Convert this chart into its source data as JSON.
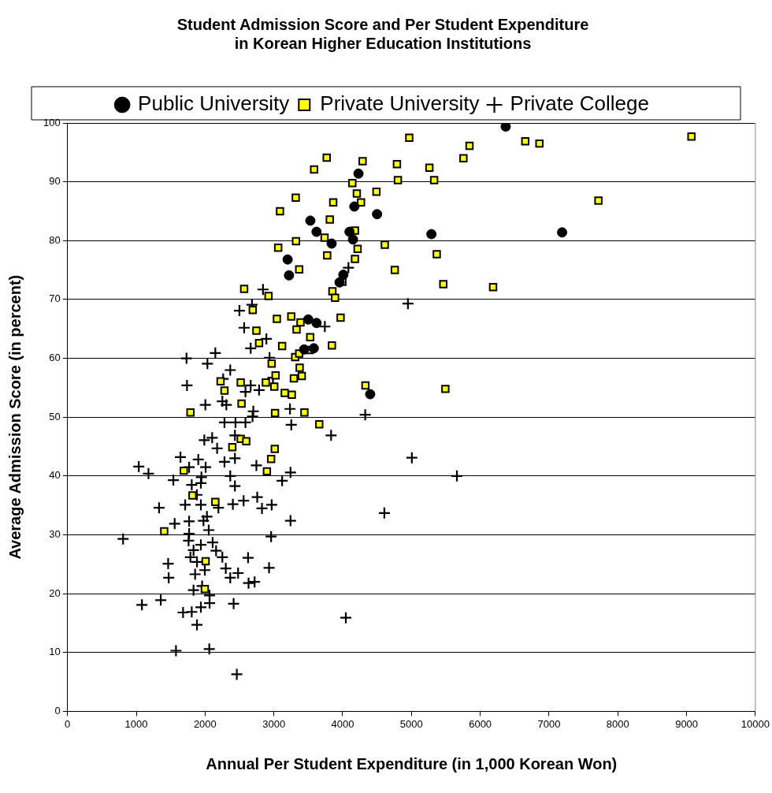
{
  "chart_data": {
    "type": "scatter",
    "title": "Student Admission Score and Per Student Expenditure\nin Korean Higher Education Institutions",
    "xlabel": "Annual Per Student Expenditure (in 1,000 Korean Won)",
    "ylabel": "Average Admission Score (in percent)",
    "xlim": [
      0,
      10000
    ],
    "xticks": [
      0,
      1000,
      2000,
      3000,
      4000,
      5000,
      6000,
      7000,
      8000,
      9000,
      10000
    ],
    "ylim": [
      0,
      100
    ],
    "yticks": [
      0,
      10,
      20,
      30,
      40,
      50,
      60,
      70,
      80,
      90,
      100
    ],
    "grid": "y",
    "legend": "top",
    "series": [
      {
        "name": "Public University",
        "color": "#000000",
        "marker": "circle",
        "x": [
          6370,
          7190,
          4230,
          4170,
          4500,
          3530,
          3620,
          3840,
          4100,
          4150,
          5290,
          3200,
          3220,
          4010,
          3955,
          3500,
          3620,
          3580,
          3440,
          4400
        ],
        "values": [
          99.4,
          81.4,
          91.4,
          85.8,
          84.5,
          83.4,
          81.5,
          79.5,
          81.5,
          80.2,
          81.1,
          76.8,
          74.1,
          74.2,
          72.9,
          66.6,
          66.0,
          61.7,
          61.5,
          53.9
        ]
      },
      {
        "name": "Private University",
        "color": "#ffff00",
        "marker": "square",
        "x": [
          3318,
          3089,
          3322,
          3063,
          3368,
          2568,
          2922,
          2693,
          3044,
          3253,
          3330,
          2746,
          2785,
          3120,
          3310,
          3368,
          2968,
          3025,
          3291,
          3375,
          2225,
          2518,
          2883,
          2282,
          3006,
          3158,
          3261,
          2530,
          1787,
          3017,
          1691,
          2518,
          2598,
          2396,
          3013,
          2960,
          2899,
          1817,
          2149,
          1406,
          2008,
          1996,
          4968,
          5844,
          6655,
          5756,
          3768,
          3585,
          4290,
          4789,
          5261,
          4141,
          4803,
          5330,
          3863,
          4206,
          4267,
          4491,
          3813,
          4179,
          3737,
          4613,
          4217,
          3775,
          4179,
          5368,
          4758,
          5463,
          6187,
          3851,
          3890,
          3996,
          3387,
          3970,
          3528,
          3844,
          3520,
          3406,
          4331,
          5493,
          3444,
          3660,
          6860,
          9070,
          7718
        ],
        "values": [
          87.3,
          85.0,
          79.9,
          78.8,
          75.1,
          71.8,
          70.6,
          68.2,
          66.7,
          67.1,
          64.9,
          64.7,
          62.6,
          62.1,
          60.2,
          60.8,
          59.1,
          57.1,
          56.6,
          58.4,
          56.1,
          55.9,
          55.9,
          54.5,
          55.2,
          54.1,
          53.8,
          52.3,
          50.8,
          50.7,
          40.9,
          46.3,
          45.9,
          44.9,
          44.6,
          42.9,
          40.8,
          36.7,
          35.6,
          30.6,
          25.5,
          20.8,
          97.5,
          96.1,
          96.9,
          94.0,
          94.1,
          92.1,
          93.5,
          93.0,
          92.4,
          89.8,
          90.3,
          90.3,
          86.5,
          88.0,
          86.5,
          88.3,
          83.6,
          81.7,
          80.5,
          79.3,
          78.6,
          77.5,
          76.9,
          77.7,
          75.0,
          72.6,
          72.1,
          71.4,
          70.3,
          73.0,
          66.1,
          66.9,
          63.6,
          62.2,
          61.4,
          57.0,
          55.4,
          54.8,
          50.8,
          48.8,
          96.5,
          97.7,
          86.8
        ]
      },
      {
        "name": "Private College",
        "color": "#000000",
        "marker": "cross",
        "x": [
          2842,
          2682,
          2499,
          2568,
          2891,
          2663,
          2149,
          1730,
          2034,
          2366,
          2937,
          1737,
          2263,
          2663,
          2587,
          2785,
          2987,
          2004,
          2251,
          2309,
          2701,
          3234,
          2282,
          2442,
          2587,
          2690,
          3253,
          1989,
          2103,
          2175,
          2434,
          1642,
          1901,
          1768,
          2008,
          2282,
          2434,
          2746,
          1036,
          1177,
          1539,
          1806,
          1939,
          1947,
          2366,
          2434,
          3120,
          3242,
          1882,
          1711,
          1331,
          1939,
          2194,
          2404,
          2560,
          2758,
          2827,
          2968,
          3242,
          1558,
          1768,
          1977,
          2027,
          2053,
          1768,
          1760,
          808,
          2960,
          1832,
          1939,
          2110,
          2160,
          2251,
          2625,
          1787,
          1882,
          1463,
          1471,
          1855,
          1996,
          2301,
          2366,
          2480,
          2930,
          2632,
          2720,
          1832,
          1957,
          2065,
          2065,
          1082,
          1356,
          1680,
          1806,
          1939,
          2415,
          1882,
          1577,
          2061,
          2461,
          4949,
          4328,
          3832,
          5006,
          5661,
          4606,
          4046,
          4084,
          3741
        ],
        "values": [
          71.7,
          69.1,
          68.1,
          65.2,
          63.3,
          61.7,
          60.9,
          60.0,
          59.1,
          58.0,
          60.1,
          55.4,
          56.5,
          55.4,
          54.3,
          54.6,
          56.7,
          52.1,
          52.7,
          52.1,
          51.0,
          51.4,
          49.1,
          49.1,
          49.1,
          50.1,
          48.7,
          46.1,
          46.5,
          44.7,
          46.9,
          43.2,
          42.8,
          41.5,
          41.5,
          42.4,
          43.0,
          41.8,
          41.6,
          40.4,
          39.3,
          38.5,
          38.8,
          39.8,
          40.0,
          38.3,
          39.2,
          40.6,
          36.8,
          35.1,
          34.6,
          35.1,
          34.6,
          35.2,
          35.8,
          36.4,
          34.5,
          35.1,
          32.4,
          31.9,
          32.3,
          32.4,
          33.1,
          30.8,
          30.2,
          29.0,
          29.3,
          29.7,
          27.4,
          28.3,
          28.7,
          27.3,
          26.2,
          26.1,
          26.2,
          25.4,
          25.1,
          22.7,
          23.3,
          24.0,
          24.3,
          22.7,
          23.5,
          24.4,
          21.8,
          22.0,
          20.6,
          21.3,
          19.7,
          18.4,
          18.1,
          18.9,
          16.8,
          16.9,
          17.7,
          18.3,
          14.7,
          10.3,
          10.6,
          6.3,
          69.3,
          50.4,
          46.9,
          43.1,
          40.0,
          33.7,
          15.9,
          75.4,
          65.4
        ]
      }
    ]
  }
}
